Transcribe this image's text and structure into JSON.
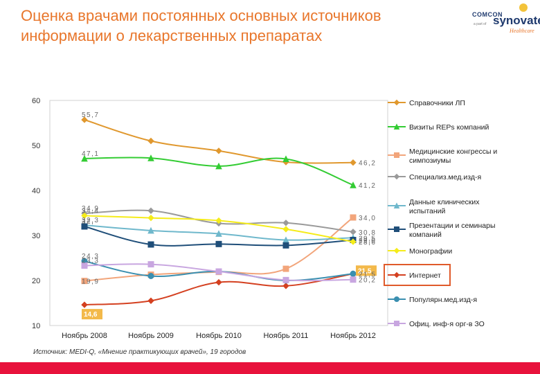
{
  "title": "Оценка врачами постоянных основных источников информации о лекарственных препаратах",
  "logo": {
    "company": "COMCON",
    "part_of": "a part of",
    "brand": "synovate",
    "sub": "Healthcare"
  },
  "source": "Источник: MEDI-Q, «Мнение практикующих врачей», 19 городов",
  "colors": {
    "title": "#e8762b",
    "bottom_bar": "#e8123c",
    "highlight_box": "#e05a2a"
  },
  "chart_data": {
    "type": "line",
    "categories": [
      "Ноябрь 2008",
      "Ноябрь 2009",
      "Ноябрь 2010",
      "Ноябрь 2011",
      "Ноябрь 2012"
    ],
    "y_ticks": [
      "10",
      "20",
      "30",
      "40",
      "50",
      "60"
    ],
    "ylim": [
      10,
      60
    ],
    "grid": false,
    "legend_position": "right",
    "highlighted_series": "Интернет",
    "series": [
      {
        "name": "Справочники ЛП",
        "color": "#e0982e",
        "marker": "diamond",
        "values": [
          55.7,
          51.0,
          48.8,
          46.3,
          46.2
        ],
        "labels": [
          {
            "i": 0,
            "text": "55,7"
          },
          {
            "i": 4,
            "text": "46,2"
          }
        ]
      },
      {
        "name": "Визиты REPs компаний",
        "color": "#33cc33",
        "marker": "triangle",
        "values": [
          47.1,
          47.2,
          45.4,
          47.0,
          41.2
        ],
        "labels": [
          {
            "i": 0,
            "text": "47,1"
          },
          {
            "i": 4,
            "text": "41,2"
          }
        ]
      },
      {
        "name": "Медицинские конгрессы и симпозиумы",
        "color": "#f2a57b",
        "marker": "square",
        "values": [
          19.9,
          21.3,
          21.9,
          22.6,
          34.0
        ],
        "labels": [
          {
            "i": 0,
            "text": "19,9"
          },
          {
            "i": 4,
            "text": "34,0"
          }
        ]
      },
      {
        "name": "Специализ.мед.изд-я",
        "color": "#9a9a9a",
        "marker": "diamond",
        "values": [
          34.9,
          35.5,
          32.7,
          32.8,
          30.8
        ],
        "labels": [
          {
            "i": 0,
            "text": "34,9"
          },
          {
            "i": 4,
            "text": "30,8"
          }
        ]
      },
      {
        "name": "Данные клинических испытаний",
        "color": "#6fb8cc",
        "marker": "triangle",
        "values": [
          32.3,
          31.1,
          30.4,
          29.0,
          29.5
        ],
        "labels": [
          {
            "i": 0,
            "text": "32,3"
          },
          {
            "i": 4,
            "text": "29,5"
          }
        ]
      },
      {
        "name": "Презентации и семинары компаний",
        "color": "#1f4e79",
        "marker": "square",
        "values": [
          32.0,
          28.0,
          28.1,
          27.8,
          29.0
        ],
        "labels": [
          {
            "i": 0,
            "text": "32,"
          },
          {
            "i": 4,
            "text": "29,0"
          }
        ]
      },
      {
        "name": "Монографии",
        "color": "#f5ec1a",
        "marker": "diamond",
        "values": [
          34.4,
          33.9,
          33.3,
          31.4,
          28.6
        ],
        "labels": [
          {
            "i": 0,
            "text": "34,4"
          },
          {
            "i": 4,
            "text": "28,6"
          }
        ]
      },
      {
        "name": "Интернет",
        "color": "#d44020",
        "marker": "diamond",
        "values": [
          14.6,
          15.5,
          19.6,
          18.8,
          21.5
        ],
        "labels": [
          {
            "i": 0,
            "text": "14,6"
          },
          {
            "i": 4,
            "text": "21,5"
          }
        ]
      },
      {
        "name": "Популярн.мед.изд-я",
        "color": "#3a8fb0",
        "marker": "circle",
        "values": [
          24.3,
          21.0,
          22.0,
          20.0,
          21.5
        ],
        "labels": [
          {
            "i": 0,
            "text": "24,3"
          },
          {
            "i": 4,
            "text": "21,5"
          }
        ]
      },
      {
        "name": "Офиц. инф-я орг-в ЗО",
        "color": "#c8a6e0",
        "marker": "square",
        "values": [
          23.3,
          23.6,
          22.0,
          20.1,
          20.2
        ],
        "labels": [
          {
            "i": 0,
            "text": "23,3"
          },
          {
            "i": 4,
            "text": "20,2"
          }
        ]
      }
    ]
  }
}
